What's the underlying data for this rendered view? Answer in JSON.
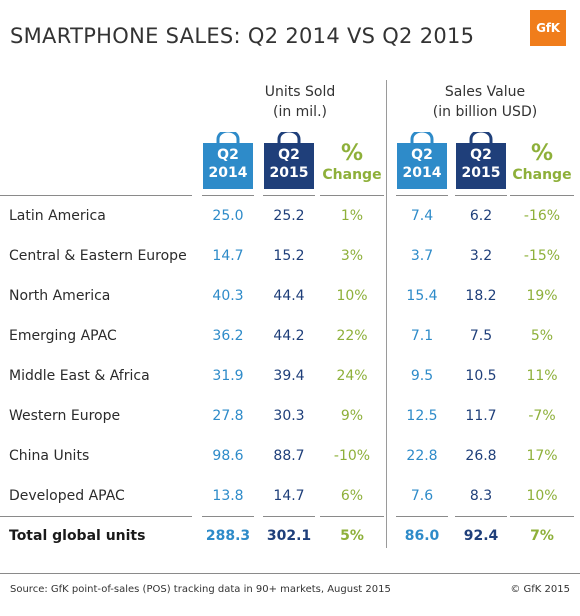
{
  "title": "SMARTPHONE SALES: Q2 2014 VS Q2 2015",
  "logo": "GfK",
  "groups": {
    "units": {
      "line1": "Units Sold",
      "line2": "(in mil.)"
    },
    "value": {
      "line1": "Sales Value",
      "line2": "(in billion USD)"
    }
  },
  "bags": {
    "q2014": {
      "line1": "Q2",
      "line2": "2014"
    },
    "q2015": {
      "line1": "Q2",
      "line2": "2015"
    }
  },
  "pct_header": {
    "symbol": "%",
    "label": "Change"
  },
  "colors": {
    "q2014": "#2e8bc9",
    "q2015": "#1f3f7a",
    "change": "#8eb03a",
    "logo": "#f07d1b"
  },
  "chart_data": {
    "type": "table",
    "title": "SMARTPHONE SALES: Q2 2014 VS Q2 2015",
    "columns": [
      "Units Sold Q2 2014",
      "Units Sold Q2 2015",
      "Units % Change",
      "Sales Value Q2 2014",
      "Sales Value Q2 2015",
      "Sales Value % Change"
    ],
    "rows": [
      {
        "label": "Latin America",
        "values": [
          "25.0",
          "25.2",
          "1%",
          "7.4",
          "6.2",
          "-16%"
        ]
      },
      {
        "label": "Central & Eastern Europe",
        "values": [
          "14.7",
          "15.2",
          "3%",
          "3.7",
          "3.2",
          "-15%"
        ]
      },
      {
        "label": "North America",
        "values": [
          "40.3",
          "44.4",
          "10%",
          "15.4",
          "18.2",
          "19%"
        ]
      },
      {
        "label": "Emerging APAC",
        "values": [
          "36.2",
          "44.2",
          "22%",
          "7.1",
          "7.5",
          "5%"
        ]
      },
      {
        "label": "Middle East & Africa",
        "values": [
          "31.9",
          "39.4",
          "24%",
          "9.5",
          "10.5",
          "11%"
        ]
      },
      {
        "label": "Western Europe",
        "values": [
          "27.8",
          "30.3",
          "9%",
          "12.5",
          "11.7",
          "-7%"
        ]
      },
      {
        "label": "China Units",
        "values": [
          "98.6",
          "88.7",
          "-10%",
          "22.8",
          "26.8",
          "17%"
        ]
      },
      {
        "label": "Developed APAC",
        "values": [
          "13.8",
          "14.7",
          "6%",
          "7.6",
          "8.3",
          "10%"
        ]
      }
    ],
    "total": {
      "label": "Total global units",
      "values": [
        "288.3",
        "302.1",
        "5%",
        "86.0",
        "92.4",
        "7%"
      ]
    }
  },
  "footer": {
    "source": "Source: GfK point-of-sales (POS) tracking data in 90+ markets, August 2015",
    "copyright": "© GfK 2015"
  }
}
